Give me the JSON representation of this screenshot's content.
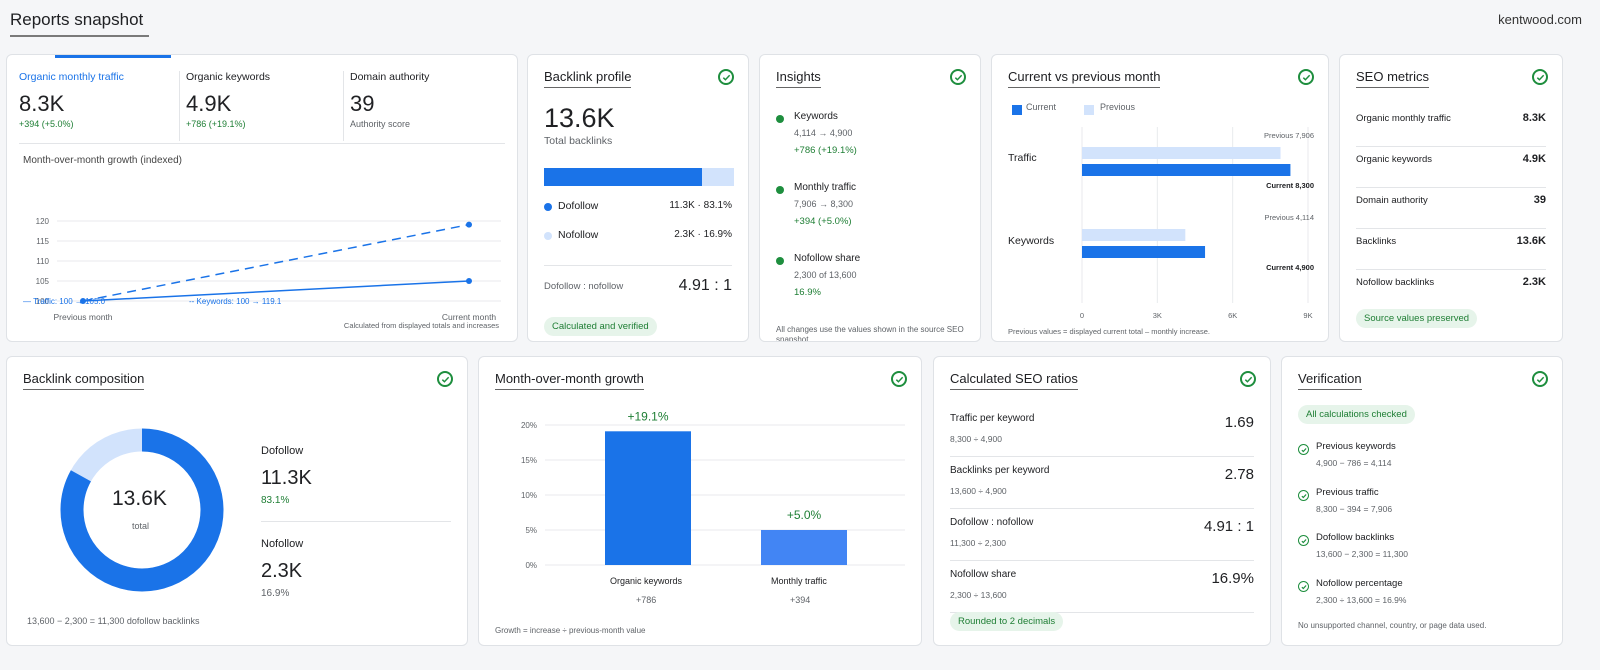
{
  "header": {
    "title": "Reports snapshot",
    "domain": "kentwood.com"
  },
  "kpis": [
    {
      "label": "Organic monthly traffic",
      "value": "8.3K",
      "delta": "+394 (+5.0%)"
    },
    {
      "label": "Organic keywords",
      "value": "4.9K",
      "delta": "+786 (+19.1%)"
    },
    {
      "label": "Domain authority",
      "value": "39",
      "sub": "Authority score"
    }
  ],
  "growth_line": {
    "title": "Month-over-month growth (indexed)",
    "legend_traffic": "— Traffic: 100 → 105.0",
    "legend_keywords": "-- Keywords: 100 → 119.1",
    "note": "Calculated from displayed totals and increases"
  },
  "backlink_profile": {
    "title": "Backlink profile",
    "total": "13.6K",
    "total_label": "Total backlinks",
    "dofollow_label": "Dofollow",
    "dofollow_value": "11.3K · 83.1%",
    "nofollow_label": "Nofollow",
    "nofollow_value": "2.3K · 16.9%",
    "ratio_label": "Dofollow : nofollow",
    "ratio_value": "4.91 : 1",
    "badge": "Calculated and verified",
    "dofollow_share": 0.831
  },
  "insights": {
    "title": "Insights",
    "items": [
      {
        "name": "Keywords",
        "detail": "4,114 → 4,900",
        "delta": "+786 (+19.1%)"
      },
      {
        "name": "Monthly traffic",
        "detail": "7,906 → 8,300",
        "delta": "+394 (+5.0%)"
      },
      {
        "name": "Nofollow share",
        "detail": "2,300 of 13,600",
        "delta": "16.9%"
      }
    ],
    "note": "All changes use the values shown in the source SEO snapshot."
  },
  "cvp": {
    "title": "Current vs previous month",
    "legend_current": "Current",
    "legend_previous": "Previous",
    "traffic_label": "Traffic",
    "keywords_label": "Keywords",
    "traffic_prev": "Previous 7,906",
    "traffic_cur": "Current 8,300",
    "keywords_prev": "Previous 4,114",
    "keywords_cur": "Current 4,900",
    "note": "Previous values = displayed current total – monthly increase."
  },
  "seo_metrics": {
    "title": "SEO metrics",
    "rows": [
      {
        "label": "Organic monthly traffic",
        "value": "8.3K"
      },
      {
        "label": "Organic keywords",
        "value": "4.9K"
      },
      {
        "label": "Domain authority",
        "value": "39"
      },
      {
        "label": "Backlinks",
        "value": "13.6K"
      },
      {
        "label": "Nofollow backlinks",
        "value": "2.3K"
      }
    ],
    "badge": "Source values preserved"
  },
  "composition": {
    "title": "Backlink composition",
    "center_value": "13.6K",
    "center_label": "total",
    "dofollow_label": "Dofollow",
    "dofollow_value": "11.3K",
    "dofollow_pct": "83.1%",
    "nofollow_label": "Nofollow",
    "nofollow_value": "2.3K",
    "nofollow_pct": "16.9%",
    "note": "13,600 − 2,300 = 11,300 dofollow backlinks",
    "dofollow_share": 0.831
  },
  "mom": {
    "title": "Month-over-month growth",
    "bars": [
      {
        "label": "Organic keywords",
        "sub": "+786",
        "pct": "+19.1%"
      },
      {
        "label": "Monthly traffic",
        "sub": "+394",
        "pct": "+5.0%"
      }
    ],
    "note": "Growth = increase ÷ previous-month value"
  },
  "ratios": {
    "title": "Calculated SEO ratios",
    "rows": [
      {
        "label": "Traffic per keyword",
        "formula": "8,300 ÷ 4,900",
        "value": "1.69"
      },
      {
        "label": "Backlinks per keyword",
        "formula": "13,600 ÷ 4,900",
        "value": "2.78"
      },
      {
        "label": "Dofollow : nofollow",
        "formula": "11,300 ÷ 2,300",
        "value": "4.91 : 1"
      },
      {
        "label": "Nofollow share",
        "formula": "2,300 ÷ 13,600",
        "value": "16.9%"
      }
    ],
    "badge": "Rounded to 2 decimals"
  },
  "verification": {
    "title": "Verification",
    "badge": "All calculations checked",
    "items": [
      {
        "label": "Previous keywords",
        "formula": "4,900 − 786 = 4,114"
      },
      {
        "label": "Previous traffic",
        "formula": "8,300 − 394 = 7,906"
      },
      {
        "label": "Dofollow backlinks",
        "formula": "13,600 − 2,300 = 11,300"
      },
      {
        "label": "Nofollow percentage",
        "formula": "2,300 ÷ 13,600 = 16.9%"
      }
    ],
    "note": "No unsupported channel, country, or page data used."
  },
  "chart_data": [
    {
      "type": "line",
      "title": "Month-over-month growth (indexed)",
      "categories": [
        "Previous month",
        "Current month"
      ],
      "ylim": [
        100,
        120
      ],
      "yticks": [
        100,
        105,
        110,
        115,
        120
      ],
      "series": [
        {
          "name": "Traffic",
          "values": [
            100,
            105.0
          ]
        },
        {
          "name": "Keywords",
          "values": [
            100,
            119.1
          ]
        }
      ]
    },
    {
      "type": "bar",
      "title": "Current vs previous month",
      "categories": [
        "Traffic",
        "Keywords"
      ],
      "xlim": [
        0,
        9000
      ],
      "xticks": [
        "0",
        "3K",
        "6K",
        "9K"
      ],
      "series": [
        {
          "name": "Previous",
          "values": [
            7906,
            4114
          ]
        },
        {
          "name": "Current",
          "values": [
            8300,
            4900
          ]
        }
      ]
    },
    {
      "type": "bar",
      "title": "Month-over-month growth",
      "categories": [
        "Organic keywords",
        "Monthly traffic"
      ],
      "ylim": [
        0,
        20
      ],
      "yticks": [
        "0%",
        "5%",
        "10%",
        "15%",
        "20%"
      ],
      "values": [
        19.1,
        5.0
      ]
    },
    {
      "type": "pie",
      "title": "Backlink composition",
      "categories": [
        "Dofollow",
        "Nofollow"
      ],
      "values": [
        11300,
        2300
      ]
    }
  ],
  "colors": {
    "blue": "#1a73e8",
    "light_blue": "#d2e3fc",
    "green": "#1e8e3e",
    "bar2": "#4285f4"
  }
}
